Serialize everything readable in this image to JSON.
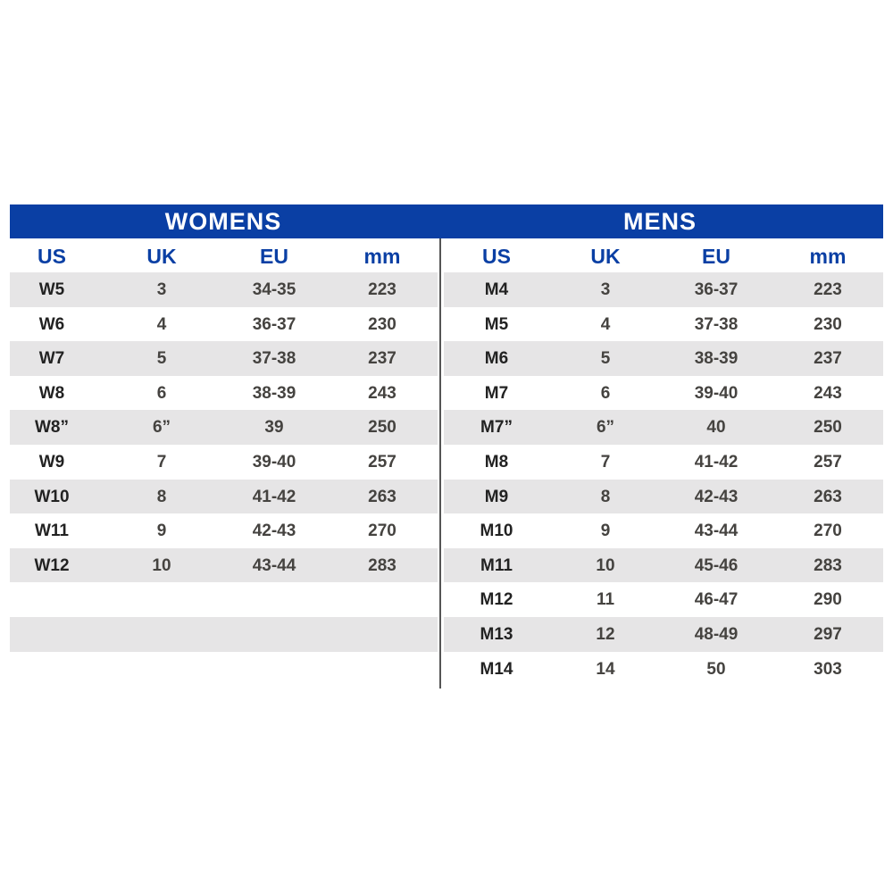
{
  "womens": {
    "title": "WOMENS",
    "headers": [
      "US",
      "UK",
      "EU",
      "mm"
    ],
    "rows": [
      [
        "W5",
        "3",
        "34-35",
        "223"
      ],
      [
        "W6",
        "4",
        "36-37",
        "230"
      ],
      [
        "W7",
        "5",
        "37-38",
        "237"
      ],
      [
        "W8",
        "6",
        "38-39",
        "243"
      ],
      [
        "W8”",
        "6”",
        "39",
        "250"
      ],
      [
        "W9",
        "7",
        "39-40",
        "257"
      ],
      [
        "W10",
        "8",
        "41-42",
        "263"
      ],
      [
        "W11",
        "9",
        "42-43",
        "270"
      ],
      [
        "W12",
        "10",
        "43-44",
        "283"
      ]
    ]
  },
  "mens": {
    "title": "MENS",
    "headers": [
      "US",
      "UK",
      "EU",
      "mm"
    ],
    "rows": [
      [
        "M4",
        "3",
        "36-37",
        "223"
      ],
      [
        "M5",
        "4",
        "37-38",
        "230"
      ],
      [
        "M6",
        "5",
        "38-39",
        "237"
      ],
      [
        "M7",
        "6",
        "39-40",
        "243"
      ],
      [
        "M7”",
        "6”",
        "40",
        "250"
      ],
      [
        "M8",
        "7",
        "41-42",
        "257"
      ],
      [
        "M9",
        "8",
        "42-43",
        "263"
      ],
      [
        "M10",
        "9",
        "43-44",
        "270"
      ],
      [
        "M11",
        "10",
        "45-46",
        "283"
      ],
      [
        "M12",
        "11",
        "46-47",
        "290"
      ],
      [
        "M13",
        "12",
        "48-49",
        "297"
      ],
      [
        "M14",
        "14",
        "50",
        "303"
      ]
    ]
  },
  "colors": {
    "header_blue": "#0a3fa4",
    "stripe_gray": "#e6e5e6"
  }
}
